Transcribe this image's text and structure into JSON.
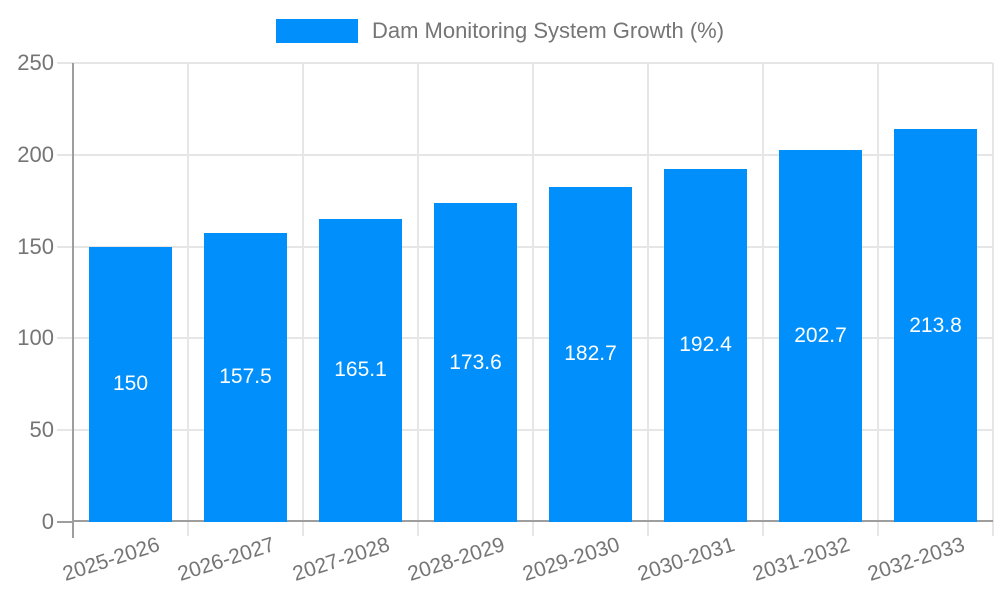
{
  "chart_data": {
    "type": "bar",
    "title": "Dam Monitoring System Growth (%)",
    "categories": [
      "2025-2026",
      "2026-2027",
      "2027-2028",
      "2028-2029",
      "2029-2030",
      "2030-2031",
      "2031-2032",
      "2032-2033"
    ],
    "values": [
      150,
      157.5,
      165.1,
      173.6,
      182.7,
      192.4,
      202.7,
      213.8
    ],
    "value_labels": [
      "150",
      "157.5",
      "165.1",
      "173.6",
      "182.7",
      "192.4",
      "202.7",
      "213.8"
    ],
    "xlabel": "",
    "ylabel": "",
    "ylim": [
      0,
      250
    ],
    "yticks": [
      0,
      50,
      100,
      150,
      200,
      250
    ],
    "ytick_labels": [
      "0",
      "50",
      "100",
      "150",
      "200",
      "250"
    ],
    "grid": true,
    "legend_position": "top-center",
    "legend_label": "Dam Monitoring System Growth (%)",
    "colors": {
      "bar": "#0190fb",
      "axis_text": "#757575",
      "grid_line": "#e6e6e6",
      "axis_line": "#9e9e9e",
      "value_text": "#ffffff",
      "background": "#ffffff"
    }
  }
}
